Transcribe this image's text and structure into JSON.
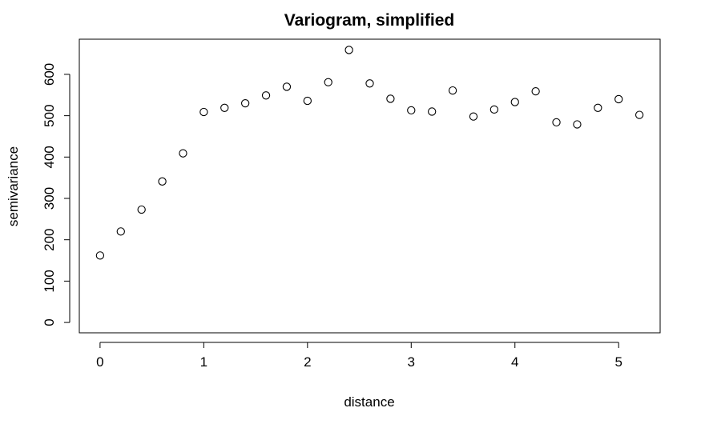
{
  "chart_data": {
    "type": "scatter",
    "title": "Variogram, simplified",
    "xlabel": "distance",
    "ylabel": "semivariance",
    "xlim": [
      -0.2,
      5.4
    ],
    "ylim": [
      -25,
      685
    ],
    "xticks": [
      0,
      1,
      2,
      3,
      4,
      5
    ],
    "yticks": [
      0,
      100,
      200,
      300,
      400,
      500,
      600
    ],
    "xtick_labels": [
      "0",
      "1",
      "2",
      "3",
      "4",
      "5"
    ],
    "ytick_labels": [
      "0",
      "100",
      "200",
      "300",
      "400",
      "500",
      "600"
    ],
    "grid": false,
    "legend": "none",
    "marker": "open-circle",
    "colors": {
      "marker_stroke": "#000000",
      "axis": "#000000",
      "background": "#ffffff"
    },
    "x": [
      0.0,
      0.2,
      0.4,
      0.6,
      0.8,
      1.0,
      1.2,
      1.4,
      1.6,
      1.8,
      2.0,
      2.2,
      2.4,
      2.6,
      2.8,
      3.0,
      3.2,
      3.4,
      3.6,
      3.8,
      4.0,
      4.2,
      4.4,
      4.6,
      4.8,
      5.0,
      5.2
    ],
    "y": [
      162,
      220,
      273,
      341,
      409,
      509,
      519,
      530,
      549,
      570,
      536,
      581,
      659,
      578,
      541,
      513,
      510,
      561,
      498,
      515,
      533,
      559,
      484,
      479,
      519,
      540,
      502
    ]
  }
}
